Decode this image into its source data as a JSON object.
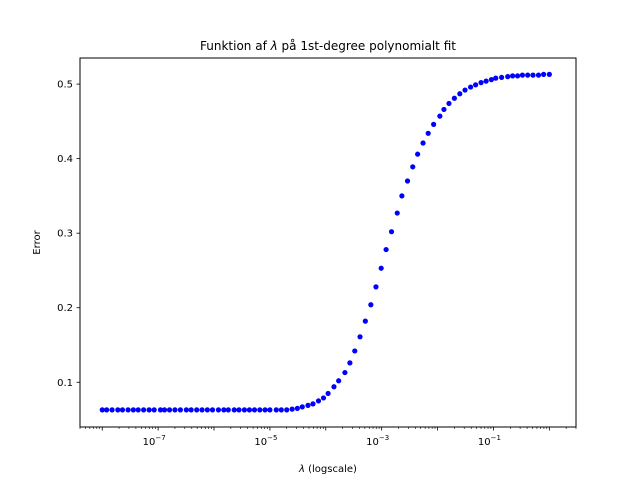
{
  "chart_data": {
    "type": "scatter",
    "title_prefix": "Funktion af ",
    "title_symbol": "λ",
    "title_suffix": " på 1st-degree polynomialt fit",
    "xlabel_symbol": "λ",
    "xlabel_suffix": " (logscale)",
    "ylabel": "Error",
    "xscale": "log",
    "xlim": [
      4e-09,
      3.0
    ],
    "ylim": [
      0.04,
      0.535
    ],
    "grid": false,
    "marker_color": "#0000ff",
    "x_ticks": [
      {
        "value": 1e-07,
        "base": "10",
        "exp": "−7"
      },
      {
        "value": 1e-05,
        "base": "10",
        "exp": "−5"
      },
      {
        "value": 0.001,
        "base": "10",
        "exp": "−3"
      },
      {
        "value": 0.1,
        "base": "10",
        "exp": "−1"
      }
    ],
    "y_ticks": [
      {
        "value": 0.1,
        "label": "0.1"
      },
      {
        "value": 0.2,
        "label": "0.2"
      },
      {
        "value": 0.3,
        "label": "0.3"
      },
      {
        "value": 0.4,
        "label": "0.4"
      },
      {
        "value": 0.5,
        "label": "0.5"
      }
    ],
    "series": [
      {
        "x": [
          1e-08,
          1.2e-08,
          1.5e-08,
          1.9e-08,
          2.3e-08,
          2.9e-08,
          3.6e-08,
          4.4e-08,
          5.5e-08,
          6.9e-08,
          8.5e-08,
          1.1e-07,
          1.3e-07,
          1.6e-07,
          2e-07,
          2.5e-07,
          3.2e-07,
          3.9e-07,
          4.9e-07,
          6.1e-07,
          7.6e-07,
          9.4e-07,
          1.2e-06,
          1.5e-06,
          1.8e-06,
          2.3e-06,
          2.8e-06,
          3.5e-06,
          4.3e-06,
          5.3e-06,
          6.6e-06,
          8.2e-06,
          1e-05,
          1.3e-05,
          1.6e-05,
          2e-05,
          2.5e-05,
          3.1e-05,
          3.8e-05,
          4.8e-05,
          5.9e-05,
          7.4e-05,
          9.1e-05,
          0.00011,
          0.00014,
          0.00017,
          0.00022,
          0.00027,
          0.00033,
          0.00041,
          0.00051,
          0.00064,
          0.00079,
          0.00098,
          0.0012,
          0.0015,
          0.0019,
          0.0023,
          0.0029,
          0.0036,
          0.0044,
          0.0055,
          0.0068,
          0.0085,
          0.011,
          0.013,
          0.016,
          0.02,
          0.025,
          0.031,
          0.039,
          0.048,
          0.06,
          0.074,
          0.092,
          0.11,
          0.14,
          0.18,
          0.22,
          0.27,
          0.33,
          0.41,
          0.51,
          0.64,
          0.79,
          1.0
        ],
        "y": [
          0.063,
          0.063,
          0.063,
          0.063,
          0.063,
          0.063,
          0.063,
          0.063,
          0.063,
          0.063,
          0.063,
          0.063,
          0.063,
          0.063,
          0.063,
          0.063,
          0.063,
          0.063,
          0.063,
          0.063,
          0.063,
          0.063,
          0.063,
          0.063,
          0.063,
          0.063,
          0.063,
          0.063,
          0.063,
          0.063,
          0.063,
          0.063,
          0.063,
          0.063,
          0.063,
          0.063,
          0.064,
          0.065,
          0.067,
          0.069,
          0.071,
          0.075,
          0.079,
          0.085,
          0.094,
          0.102,
          0.113,
          0.126,
          0.142,
          0.161,
          0.182,
          0.204,
          0.228,
          0.253,
          0.278,
          0.302,
          0.327,
          0.35,
          0.37,
          0.389,
          0.406,
          0.421,
          0.434,
          0.446,
          0.457,
          0.466,
          0.474,
          0.481,
          0.487,
          0.492,
          0.496,
          0.499,
          0.502,
          0.504,
          0.506,
          0.508,
          0.509,
          0.51,
          0.511,
          0.511,
          0.512,
          0.512,
          0.512,
          0.512,
          0.513,
          0.513
        ]
      }
    ]
  }
}
